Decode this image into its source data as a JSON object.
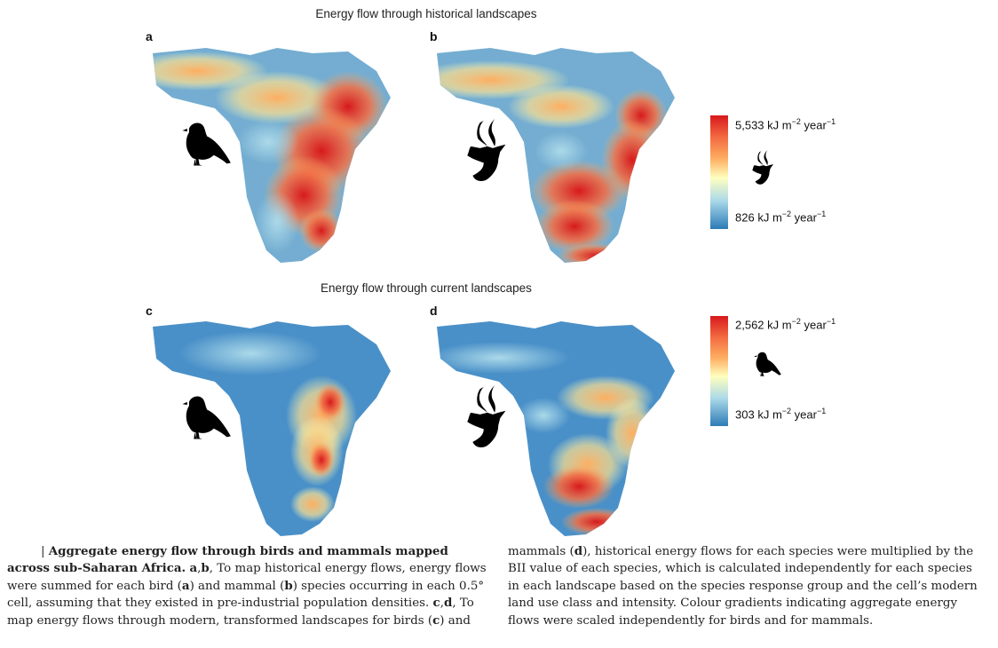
{
  "figure": {
    "top_title": "Energy flow through historical landscapes",
    "bottom_title": "Energy flow through current landscapes",
    "panels": [
      {
        "letter": "a",
        "taxon": "bird"
      },
      {
        "letter": "b",
        "taxon": "mammal"
      },
      {
        "letter": "c",
        "taxon": "bird"
      },
      {
        "letter": "d",
        "taxon": "mammal"
      }
    ],
    "legend_historical": {
      "max_value": "5,533",
      "min_value": "826",
      "unit_prefix": "kJ m",
      "unit_exp": "−2",
      "unit_suffix": "year",
      "unit_exp2": "−1",
      "icon": "antelope-icon"
    },
    "legend_current": {
      "max_value": "2,562",
      "min_value": "303",
      "unit_prefix": "kJ m",
      "unit_exp": "−2",
      "unit_suffix": "year",
      "unit_exp2": "−1",
      "icon": "bird-icon"
    },
    "colors": {
      "high": "#d7191c",
      "mid": "#ffffbf",
      "low": "#2c7bb6"
    }
  },
  "caption": {
    "bar": "|",
    "title": "Aggregate energy flow through birds and mammals mapped across sub-Saharan Africa.",
    "ab": "a",
    "ab2": "b",
    "s1": ", To map historical energy flows, energy flows were summed for each bird (",
    "a_ref": "a",
    "s2": ") and mammal (",
    "b_ref": "b",
    "s3": ") species occurring in each 0.5° cell, assuming that they existed in pre-industrial population densities.",
    "cd": "c",
    "cd2": "d",
    "s4": ", To map energy flows through modern, transformed landscapes for birds (",
    "c_ref": "c",
    "s5": ") and",
    "s6": "mammals (",
    "d_ref": "d",
    "s7": "), historical energy flows for each species were multiplied by the BII value of each species, which is calculated independently for each species in each landscape based on the species response group and the cell’s modern land use class and intensity. Colour gradients indicating aggregate energy flows were scaled independently for birds and for mammals."
  }
}
